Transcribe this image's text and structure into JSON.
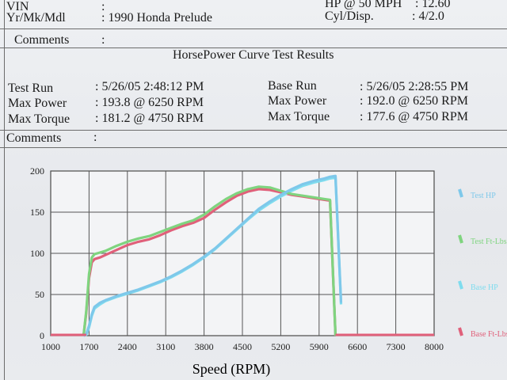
{
  "vehicle": {
    "vin_label": "VIN",
    "colon": ":",
    "ymm_label": "Yr/Mk/Mdl",
    "ymm_value": ": 1990 Honda Prelude",
    "hp50_label": "HP @ 50 MPH",
    "hp50_value": ": 12.60",
    "cyl_label": "Cyl/Disp.",
    "cyl_value": ":  4/2.0"
  },
  "comments": {
    "label": "Comments"
  },
  "report": {
    "title": "HorsePower Curve Test Results"
  },
  "test": {
    "run_label": "Test Run",
    "run_value": ": 5/26/05 2:48:12 PM",
    "power_label": "Max Power",
    "power_value": ": 193.8   @ 6250  RPM",
    "torque_label": "Max Torque",
    "torque_value": ": 181.2   @ 4750  RPM"
  },
  "base": {
    "run_label": "Base Run",
    "run_value": ": 5/26/05 2:28:55 PM",
    "power_label": "Max Power",
    "power_value": ": 192.0   @ 6250  RPM",
    "torque_label": "Max Torque",
    "torque_value": ": 177.6   @ 4750  RPM"
  },
  "chart_data": {
    "type": "line",
    "xlabel": "Speed (RPM)",
    "ylabel": "",
    "xlim": [
      1000,
      8000
    ],
    "ylim": [
      0,
      200
    ],
    "grid": true,
    "legend_position": "right",
    "x_ticks": [
      "1000",
      "1700",
      "2400",
      "3100",
      "3800",
      "4500",
      "5200",
      "5900",
      "6600",
      "7300",
      "8000"
    ],
    "y_ticks": [
      "0",
      "50",
      "100",
      "150",
      "200"
    ],
    "series": [
      {
        "name": "Test HP",
        "color": "#7ec8ea",
        "x": [
          1600,
          1650,
          1700,
          1750,
          1800,
          1900,
          2000,
          2200,
          2400,
          2600,
          2800,
          3000,
          3200,
          3400,
          3600,
          3800,
          4000,
          4200,
          4400,
          4600,
          4800,
          5000,
          5200,
          5400,
          5600,
          5800,
          6000,
          6100,
          6200,
          6300
        ],
        "y": [
          0,
          2,
          12,
          26,
          35,
          40,
          43,
          48,
          52,
          56,
          61,
          66,
          72,
          79,
          87,
          96,
          106,
          118,
          130,
          142,
          154,
          163,
          171,
          178,
          184,
          188,
          191,
          193,
          194,
          40
        ]
      },
      {
        "name": "Test Ft-Lbs",
        "color": "#7fd47f",
        "x": [
          1600,
          1650,
          1700,
          1750,
          1800,
          1900,
          2000,
          2200,
          2400,
          2600,
          2800,
          3000,
          3200,
          3400,
          3600,
          3800,
          4000,
          4200,
          4400,
          4600,
          4800,
          5000,
          5200,
          5400,
          5600,
          5800,
          6000,
          6100,
          6200
        ],
        "y": [
          0,
          30,
          75,
          95,
          99,
          101,
          103,
          109,
          114,
          118,
          121,
          126,
          131,
          136,
          140,
          147,
          157,
          166,
          173,
          178,
          181,
          180,
          176,
          172,
          170,
          168,
          166,
          165,
          0
        ]
      },
      {
        "name": "Base HP",
        "color": "#7fdcee",
        "x": [
          1600,
          1650,
          1700,
          1750,
          1800,
          1900,
          2000,
          2200,
          2400,
          2600,
          2800,
          3000,
          3200,
          3400,
          3600,
          3800,
          4000,
          4200,
          4400,
          4600,
          4800,
          5000,
          5200,
          5400,
          5600,
          5800,
          6000,
          6100,
          6200,
          6300
        ],
        "y": [
          0,
          1,
          10,
          24,
          33,
          38,
          42,
          47,
          51,
          55,
          60,
          65,
          71,
          78,
          86,
          95,
          105,
          117,
          129,
          141,
          152,
          161,
          169,
          176,
          182,
          186,
          189,
          191,
          192,
          38
        ]
      },
      {
        "name": "Base Ft-Lbs",
        "color": "#e0607a",
        "x": [
          1600,
          1650,
          1700,
          1750,
          1800,
          1900,
          2000,
          2200,
          2400,
          2600,
          2800,
          3000,
          3200,
          3400,
          3600,
          3800,
          4000,
          4200,
          4400,
          4600,
          4800,
          5000,
          5200,
          5400,
          5600,
          5800,
          6000,
          6100,
          6200
        ],
        "y": [
          0,
          28,
          70,
          89,
          93,
          95,
          98,
          104,
          110,
          114,
          117,
          122,
          128,
          133,
          137,
          143,
          153,
          162,
          170,
          175,
          178,
          177,
          174,
          171,
          169,
          167,
          165,
          164,
          0
        ]
      }
    ]
  }
}
